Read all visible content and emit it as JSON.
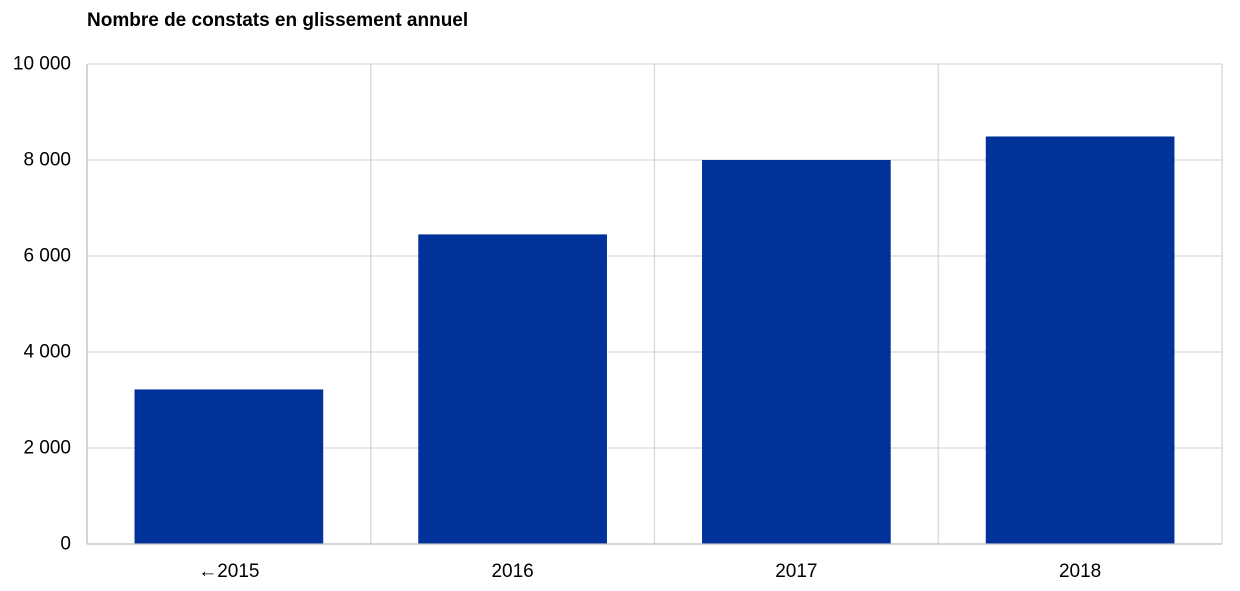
{
  "chart_data": {
    "type": "bar",
    "title": "Nombre de constats en glissement annuel",
    "categories": [
      "←2015",
      "2016",
      "2017",
      "2018"
    ],
    "values": [
      3220,
      6450,
      8000,
      8490
    ],
    "ylim": [
      0,
      10000
    ],
    "yticks": [
      0,
      2000,
      4000,
      6000,
      8000,
      10000
    ],
    "ytick_labels": [
      "0",
      "2 000",
      "4 000",
      "6 000",
      "8 000",
      "10 000"
    ],
    "bar_color": "#003299",
    "grid": true,
    "legend": "none"
  }
}
